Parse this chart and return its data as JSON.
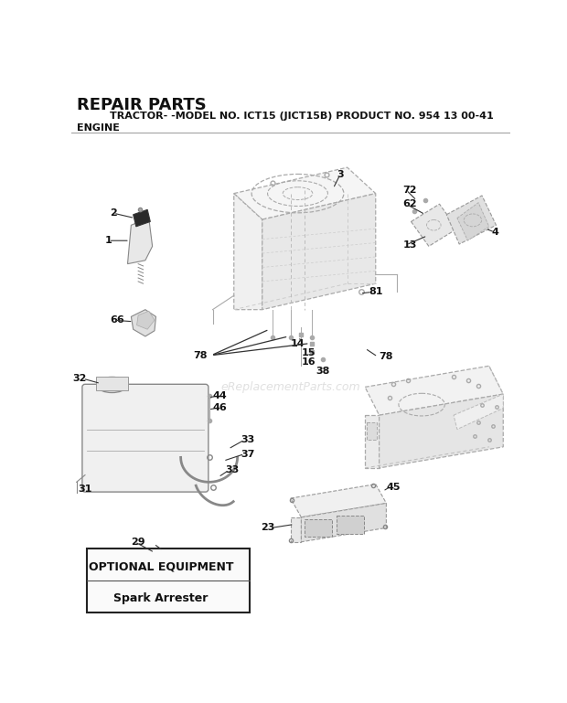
{
  "title_line1": "REPAIR PARTS",
  "title_line2": "TRACTOR- -MODEL NO. ICT15 (JICT15B) PRODUCT NO. 954 13 00-41",
  "title_line3": "ENGINE",
  "watermark": "eReplacementParts.com",
  "optional_box_title": "OPTIONAL EQUIPMENT",
  "optional_box_subtitle": "Spark Arrester",
  "bg_color": "#ffffff",
  "line_color": "#aaaaaa",
  "label_color": "#222222",
  "dashed_color": "#bbbbbb"
}
